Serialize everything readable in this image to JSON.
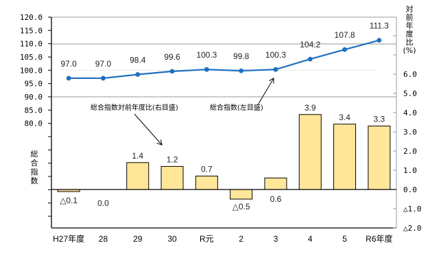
{
  "chart_data": {
    "type": "bar+line",
    "title": "",
    "categories": [
      "H27年度",
      "28",
      "29",
      "30",
      "R元",
      "2",
      "3",
      "4",
      "5",
      "R6年度"
    ],
    "series": [
      {
        "name": "総合指数（左目盛）",
        "type": "line",
        "axis": "left",
        "color": "#1f6fbf",
        "values": [
          97.0,
          97.0,
          98.4,
          99.6,
          100.3,
          99.8,
          100.3,
          104.2,
          107.8,
          111.3
        ],
        "labels": [
          "97.0",
          "97.0",
          "98.4",
          "99.6",
          "100.3",
          "99.8",
          "100.3",
          "104.2",
          "107.8",
          "111.3"
        ]
      },
      {
        "name": "総合指数対前年度比（右目盛）",
        "type": "bar",
        "axis": "right",
        "color": "#ffe699",
        "values": [
          -0.1,
          0.0,
          1.4,
          1.2,
          0.7,
          -0.5,
          0.6,
          3.9,
          3.4,
          3.3
        ],
        "labels": [
          "△0.1",
          "0.0",
          "1.4",
          "1.2",
          "0.7",
          "△0.5",
          "0.6",
          "3.9",
          "3.4",
          "3.3"
        ]
      }
    ],
    "left_axis": {
      "label": "総合指数",
      "ticks": [
        "120.0",
        "115.0",
        "110.0",
        "105.0",
        "100.0",
        "95.0",
        "90.0",
        "85.0",
        "80.0"
      ],
      "ylim": [
        80,
        120
      ]
    },
    "right_axis": {
      "label": "対前年度比（%）",
      "ticks": [
        "6.0",
        "5.0",
        "4.0",
        "3.0",
        "2.0",
        "1.0",
        "0.0",
        "△1.0",
        "△2.0"
      ],
      "ylim": [
        -2.0,
        6.0
      ]
    },
    "reference_line": {
      "axis": "left",
      "value": 100.0,
      "style": "dotted"
    },
    "annotations": [
      {
        "text": "総合指数対前年度比(右目盛)",
        "points_to": "bar series"
      },
      {
        "text": "総合指数(左目盛)",
        "points_to": "line series"
      }
    ],
    "grid": true,
    "legend": "none (annotation callouts)"
  },
  "axis_titles": {
    "left_chars": [
      "総",
      "合",
      "指",
      "数"
    ],
    "right_chars": [
      "対",
      "前",
      "年",
      "度",
      "比",
      "(%)"
    ]
  },
  "annotations": {
    "bar_callout": "総合指数対前年度比(右目盛)",
    "line_callout": "総合指数(左目盛)"
  }
}
